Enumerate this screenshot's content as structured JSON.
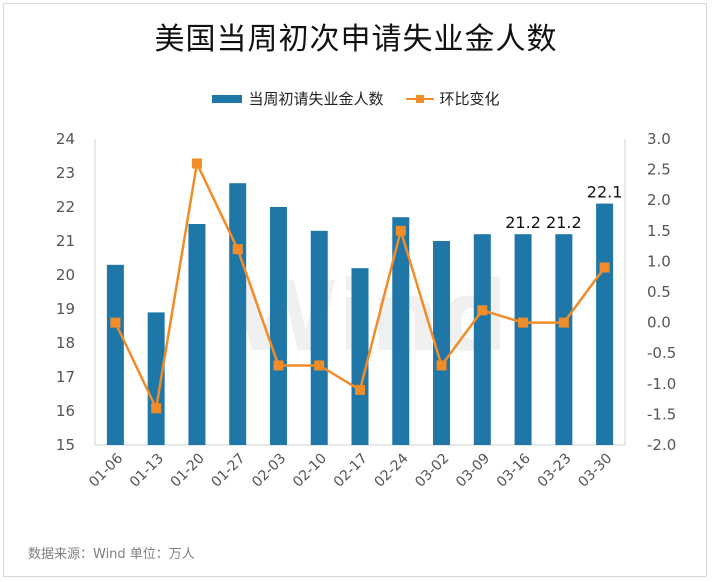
{
  "chart_data": {
    "type": "bar+line",
    "title": "美国当周初次申请失业金人数",
    "categories": [
      "01-06",
      "01-13",
      "01-20",
      "01-27",
      "02-03",
      "02-10",
      "02-17",
      "02-24",
      "03-02",
      "03-09",
      "03-16",
      "03-23",
      "03-30"
    ],
    "series": [
      {
        "name": "当周初请失业金人数",
        "kind": "bar",
        "axis": "left",
        "values": [
          20.3,
          18.9,
          21.5,
          22.7,
          22.0,
          21.3,
          20.2,
          21.7,
          21.0,
          21.2,
          21.2,
          21.2,
          22.1
        ],
        "color": "#1f77a8"
      },
      {
        "name": "环比变化",
        "kind": "line",
        "axis": "right",
        "values": [
          0.0,
          -1.4,
          2.6,
          1.2,
          -0.7,
          -0.7,
          -1.1,
          1.5,
          -0.7,
          0.2,
          0.0,
          0.0,
          0.9
        ],
        "color": "#f28c28"
      }
    ],
    "data_labels": [
      {
        "index": 10,
        "text": "21.2"
      },
      {
        "index": 11,
        "text": "21.2"
      },
      {
        "index": 12,
        "text": "22.1"
      }
    ],
    "y_left": {
      "min": 15,
      "max": 24,
      "ticks": [
        "15",
        "16",
        "17",
        "18",
        "19",
        "20",
        "21",
        "22",
        "23",
        "24"
      ]
    },
    "y_right": {
      "min": -2.0,
      "max": 3.0,
      "ticks": [
        "-2.0",
        "-1.5",
        "-1.0",
        "-0.5",
        "0.0",
        "0.5",
        "1.0",
        "1.5",
        "2.0",
        "2.5",
        "3.0"
      ]
    },
    "legend_position": "top-center",
    "watermark": "Wind"
  },
  "source_note": "数据来源：Wind    单位：万人"
}
